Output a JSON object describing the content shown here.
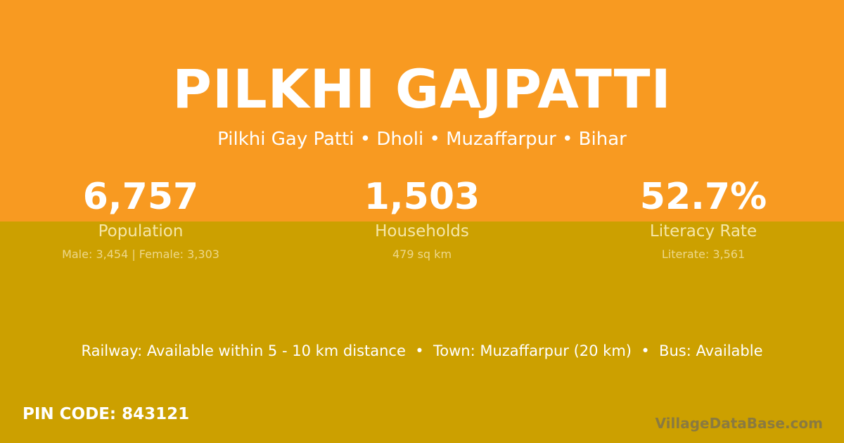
{
  "colors": {
    "top": "#f89a21",
    "bottom": "#cca000"
  },
  "title": "PILKHI GAJPATTI",
  "subtitle": "Pilkhi Gay Patti • Dholi • Muzaffarpur • Bihar",
  "stats": [
    {
      "value": "6,757",
      "label": "Population",
      "detail": "Male: 3,454 | Female: 3,303"
    },
    {
      "value": "1,503",
      "label": "Households",
      "detail": "479 sq km"
    },
    {
      "value": "52.7%",
      "label": "Literacy Rate",
      "detail": "Literate: 3,561"
    }
  ],
  "info": "Railway: Available within 5 - 10 km distance  •  Town: Muzaffarpur (20 km)  •  Bus: Available",
  "pin": "PIN CODE: 843121",
  "brand": "VillageDataBase.com"
}
